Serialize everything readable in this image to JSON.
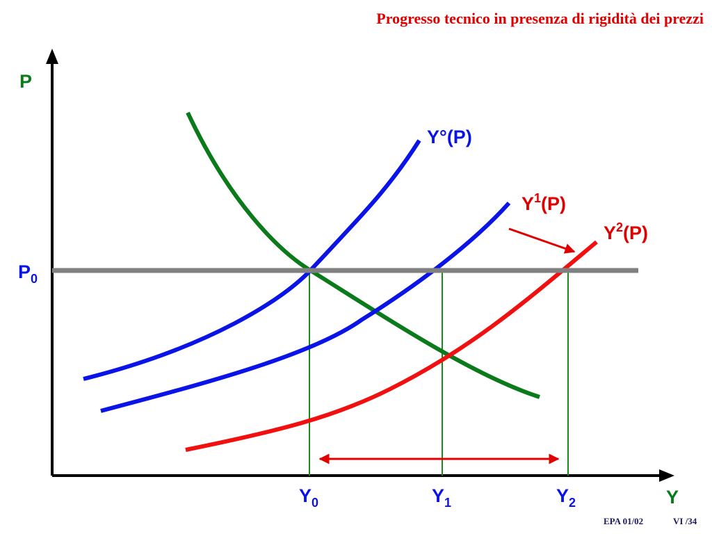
{
  "header": {
    "title": "Progresso tecnico in presenza di rigidità dei prezzi"
  },
  "axes": {
    "y_label": "P",
    "x_label": "Y"
  },
  "levels": {
    "p0": {
      "base": "P",
      "sub": "0"
    }
  },
  "outputs": [
    {
      "base": "Y",
      "sub": "0"
    },
    {
      "base": "Y",
      "sub": "1"
    },
    {
      "base": "Y",
      "sub": "2"
    }
  ],
  "curves": [
    {
      "base": "Y°",
      "rest": "(P)"
    },
    {
      "base": "Y",
      "sup": "1",
      "rest": "(P)"
    },
    {
      "base": "Y",
      "sup": "2",
      "rest": "(P)"
    }
  ],
  "footer": {
    "left": "EPA 01/02",
    "right": "VI /34"
  }
}
